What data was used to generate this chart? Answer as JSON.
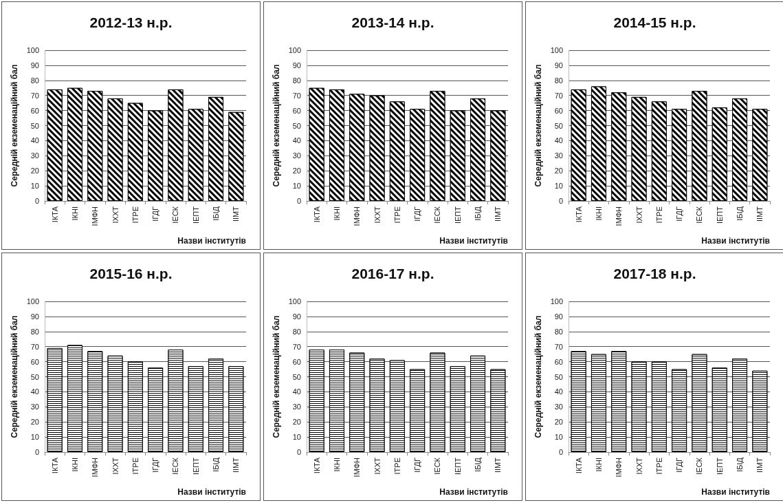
{
  "chart_data": [
    {
      "type": "bar",
      "title": "2012-13 н.р.",
      "xlabel": "Назви інститутів",
      "ylabel": "Середній екземенаційний бал",
      "categories": [
        "ІКТА",
        "ІКНІ",
        "ІМФН",
        "ІХХТ",
        "ІТРЕ",
        "ІГДГ",
        "ІЕСК",
        "ІЕПТ",
        "ІБІД",
        "ІІМТ"
      ],
      "values": [
        74,
        75,
        73,
        68,
        65,
        60,
        74,
        61,
        69,
        59
      ],
      "color": "#000000",
      "ylim": [
        0,
        100
      ],
      "yticks": [
        0,
        10,
        20,
        30,
        40,
        50,
        60,
        70,
        80,
        90,
        100
      ],
      "grid": "y"
    },
    {
      "type": "bar",
      "title": "2013-14 н.р.",
      "xlabel": "Назви інститутів",
      "ylabel": "Середній екземенаційний бал",
      "categories": [
        "ІКТА",
        "ІКНІ",
        "ІМФН",
        "ІХХТ",
        "ІТРЕ",
        "ІГДГ",
        "ІЕСК",
        "ІЕПТ",
        "ІБІД",
        "ІІМТ"
      ],
      "values": [
        75,
        74,
        71,
        70,
        66,
        61,
        73,
        60,
        68,
        60
      ],
      "color": "#000000",
      "ylim": [
        0,
        100
      ],
      "yticks": [
        0,
        10,
        20,
        30,
        40,
        50,
        60,
        70,
        80,
        90,
        100
      ],
      "grid": "y"
    },
    {
      "type": "bar",
      "title": "2014-15 н.р.",
      "xlabel": "Назви інститутів",
      "ylabel": "Середній екземенаційний бал",
      "categories": [
        "ІКТА",
        "ІКНІ",
        "ІМФН",
        "ІХХТ",
        "ІТРЕ",
        "ІГДГ",
        "ІЕСК",
        "ІЕПТ",
        "ІБІД",
        "ІІМТ"
      ],
      "values": [
        74,
        76,
        72,
        69,
        66,
        61,
        73,
        62,
        68,
        61
      ],
      "color": "#000000",
      "ylim": [
        0,
        100
      ],
      "yticks": [
        0,
        10,
        20,
        30,
        40,
        50,
        60,
        70,
        80,
        90,
        100
      ],
      "grid": "y"
    },
    {
      "type": "bar",
      "title": "2015-16 н.р.",
      "xlabel": "Назви інститутів",
      "ylabel": "Середній екземенаційний бал",
      "categories": [
        "ІКТА",
        "ІКНІ",
        "ІМФН",
        "ІХХТ",
        "ІТРЕ",
        "ІГДГ",
        "ІЕСК",
        "ІЕПТ",
        "ІБІД",
        "ІІМТ"
      ],
      "values": [
        69,
        71,
        67,
        64,
        60,
        56,
        68,
        57,
        62,
        57
      ],
      "color": "#000000",
      "ylim": [
        0,
        100
      ],
      "yticks": [
        0,
        10,
        20,
        30,
        40,
        50,
        60,
        70,
        80,
        90,
        100
      ],
      "grid": "y"
    },
    {
      "type": "bar",
      "title": "2016-17 н.р.",
      "xlabel": "Назви інститутів",
      "ylabel": "Середній екземенаційний бал",
      "categories": [
        "ІКТА",
        "ІКНІ",
        "ІМФН",
        "ІХХТ",
        "ІТРЕ",
        "ІГДГ",
        "ІЕСК",
        "ІЕПТ",
        "ІБІД",
        "ІІМТ"
      ],
      "values": [
        68,
        68,
        66,
        62,
        61,
        55,
        66,
        57,
        64,
        55
      ],
      "color": "#000000",
      "ylim": [
        0,
        100
      ],
      "yticks": [
        0,
        10,
        20,
        30,
        40,
        50,
        60,
        70,
        80,
        90,
        100
      ],
      "grid": "y"
    },
    {
      "type": "bar",
      "title": "2017-18 н.р.",
      "xlabel": "Назви інститутів",
      "ylabel": "Середній екземенаційний бал",
      "categories": [
        "ІКТА",
        "ІКНІ",
        "ІМФН",
        "ІХХТ",
        "ІТРЕ",
        "ІГДГ",
        "ІЕСК",
        "ІЕПТ",
        "ІБІД",
        "ІІМТ"
      ],
      "values": [
        67,
        65,
        67,
        60,
        60,
        55,
        65,
        56,
        62,
        54
      ],
      "color": "#000000",
      "ylim": [
        0,
        100
      ],
      "yticks": [
        0,
        10,
        20,
        30,
        40,
        50,
        60,
        70,
        80,
        90,
        100
      ],
      "grid": "y"
    }
  ]
}
